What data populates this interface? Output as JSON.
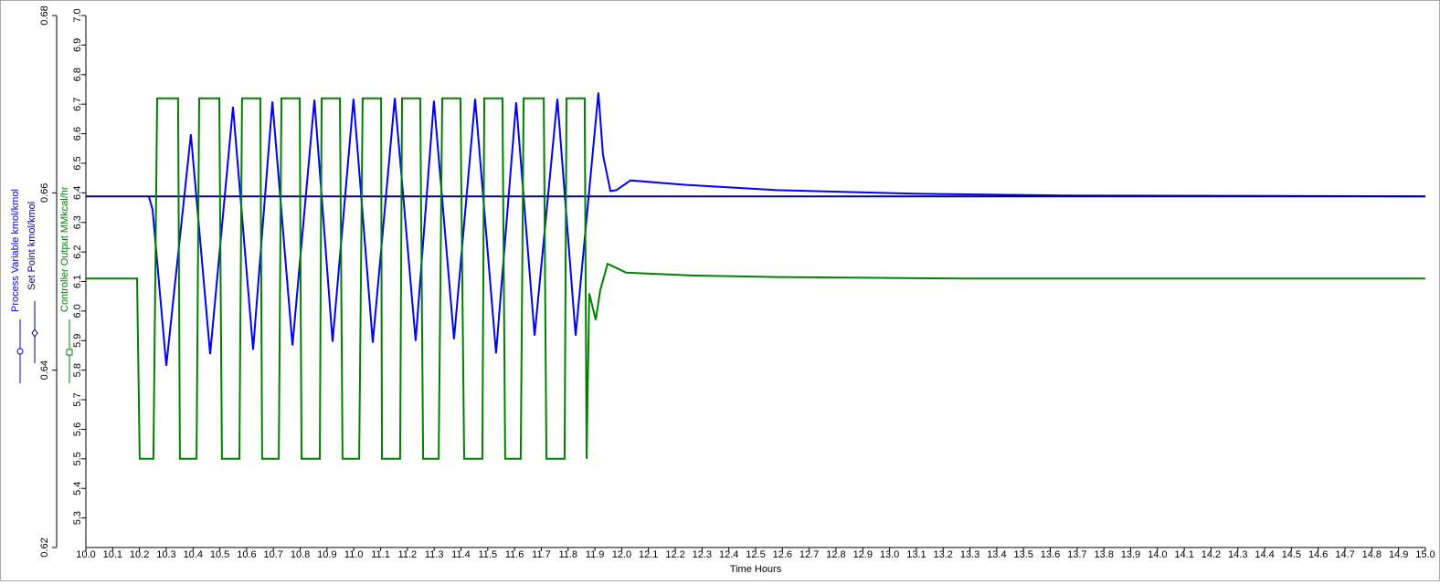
{
  "chart_data": {
    "type": "line",
    "x_label": "Time Hours",
    "xlim": [
      10.0,
      15.0
    ],
    "xticks": [
      {
        "value": 10.0,
        "label": "10.0"
      },
      {
        "value": 10.1,
        "label": "10.1"
      },
      {
        "value": 10.2,
        "label": "10.2"
      },
      {
        "value": 10.3,
        "label": "10.3"
      },
      {
        "value": 10.4,
        "label": "10.4"
      },
      {
        "value": 10.5,
        "label": "10.5"
      },
      {
        "value": 10.6,
        "label": "10.6"
      },
      {
        "value": 10.7,
        "label": "10.7"
      },
      {
        "value": 10.8,
        "label": "10.8"
      },
      {
        "value": 10.9,
        "label": "10.9"
      },
      {
        "value": 11.0,
        "label": "11.0"
      },
      {
        "value": 11.1,
        "label": "11.1"
      },
      {
        "value": 11.2,
        "label": "11.2"
      },
      {
        "value": 11.3,
        "label": "11.3"
      },
      {
        "value": 11.4,
        "label": "11.4"
      },
      {
        "value": 11.5,
        "label": "11.5"
      },
      {
        "value": 11.6,
        "label": "11.6"
      },
      {
        "value": 11.7,
        "label": "11.7"
      },
      {
        "value": 11.8,
        "label": "11.8"
      },
      {
        "value": 11.9,
        "label": "11.9"
      },
      {
        "value": 12.0,
        "label": "12.0"
      },
      {
        "value": 12.1,
        "label": "12.1"
      },
      {
        "value": 12.2,
        "label": "12.2"
      },
      {
        "value": 12.3,
        "label": "12.3"
      },
      {
        "value": 12.4,
        "label": "12.4"
      },
      {
        "value": 12.5,
        "label": "12.5"
      },
      {
        "value": 12.6,
        "label": "12.6"
      },
      {
        "value": 12.7,
        "label": "12.7"
      },
      {
        "value": 12.8,
        "label": "12.8"
      },
      {
        "value": 12.9,
        "label": "12.9"
      },
      {
        "value": 13.0,
        "label": "13.0"
      },
      {
        "value": 13.1,
        "label": "13.1"
      },
      {
        "value": 13.2,
        "label": "13.2"
      },
      {
        "value": 13.3,
        "label": "13.3"
      },
      {
        "value": 13.4,
        "label": "13.4"
      },
      {
        "value": 13.5,
        "label": "13.5"
      },
      {
        "value": 13.6,
        "label": "13.6"
      },
      {
        "value": 13.7,
        "label": "13.7"
      },
      {
        "value": 13.8,
        "label": "13.8"
      },
      {
        "value": 13.9,
        "label": "13.9"
      },
      {
        "value": 14.0,
        "label": "14.0"
      },
      {
        "value": 14.1,
        "label": "14.1"
      },
      {
        "value": 14.2,
        "label": "14.2"
      },
      {
        "value": 14.3,
        "label": "14.3"
      },
      {
        "value": 14.4,
        "label": "14.4"
      },
      {
        "value": 14.5,
        "label": "14.5"
      },
      {
        "value": 14.6,
        "label": "14.6"
      },
      {
        "value": 14.7,
        "label": "14.7"
      },
      {
        "value": 14.8,
        "label": "14.8"
      },
      {
        "value": 14.9,
        "label": "14.9"
      },
      {
        "value": 15.0,
        "label": "15.0"
      }
    ],
    "ylim": [
      0.62,
      0.68
    ],
    "yticks": [
      0.62,
      0.64,
      0.66,
      0.68
    ],
    "y2lim": [
      5.2,
      7.0
    ],
    "y2ticks": [
      5.3,
      5.4,
      5.5,
      5.6,
      5.7,
      5.8,
      5.9,
      {
        "value": 6.0,
        "label": "6.0"
      },
      6.1,
      6.2,
      6.3,
      6.4,
      6.5,
      6.6,
      6.7,
      6.8,
      6.9,
      {
        "value": 7.0,
        "label": "7.0"
      }
    ],
    "series": [
      {
        "name": "Process Variable kmol/kmol",
        "color": "#0000ff",
        "x": [
          10.235,
          10.249,
          10.3,
          10.392,
          10.464,
          10.549,
          10.624,
          10.696,
          10.771,
          10.853,
          10.921,
          10.999,
          11.071,
          11.153,
          11.231,
          11.299,
          11.374,
          11.453,
          11.531,
          11.606,
          11.675,
          11.76,
          11.828,
          11.913,
          11.93,
          11.958,
          11.98,
          12.033,
          12.24,
          12.58,
          13.09,
          13.64,
          15.0
        ],
        "values": [
          0.6596,
          0.6581,
          0.6405,
          0.6666,
          0.6418,
          0.6697,
          0.6423,
          0.6703,
          0.6428,
          0.6705,
          0.6432,
          0.6706,
          0.6431,
          0.6707,
          0.6433,
          0.6704,
          0.6435,
          0.6706,
          0.6419,
          0.6702,
          0.6439,
          0.6706,
          0.6439,
          0.6713,
          0.6643,
          0.6602,
          0.6603,
          0.6614,
          0.6609,
          0.6603,
          0.6599,
          0.6597,
          0.6596
        ]
      },
      {
        "name": "Set Point kmol/kmol",
        "color": "#000080",
        "x": [
          10.0,
          15.0
        ],
        "values": [
          0.6596,
          0.6596
        ]
      },
      {
        "name": "Controller Output MMkcal/hr",
        "color": "#008000",
        "axis": "y2",
        "x": [
          10.0,
          10.191,
          10.201,
          10.252,
          10.266,
          10.344,
          10.351,
          10.413,
          10.423,
          10.498,
          10.508,
          10.573,
          10.583,
          10.651,
          10.658,
          10.72,
          10.73,
          10.798,
          10.805,
          10.873,
          10.88,
          10.948,
          10.958,
          11.02,
          11.033,
          11.102,
          11.105,
          11.173,
          11.18,
          11.248,
          11.259,
          11.317,
          11.33,
          11.398,
          11.412,
          11.48,
          11.487,
          11.555,
          11.565,
          11.623,
          11.634,
          11.709,
          11.719,
          11.787,
          11.794,
          11.862,
          11.869,
          11.879,
          11.903,
          11.92,
          11.947,
          11.971,
          12.016,
          12.271,
          12.578,
          13.295,
          15.0
        ],
        "values": [
          6.11,
          6.11,
          5.5,
          5.5,
          6.72,
          6.72,
          5.5,
          5.5,
          6.72,
          6.72,
          5.5,
          5.5,
          6.72,
          6.72,
          5.5,
          5.5,
          6.72,
          6.72,
          5.5,
          5.5,
          6.72,
          6.72,
          5.5,
          5.5,
          6.72,
          6.72,
          5.5,
          5.5,
          6.72,
          6.72,
          5.5,
          5.5,
          6.72,
          6.72,
          5.5,
          5.5,
          6.72,
          6.72,
          5.5,
          5.5,
          6.72,
          6.72,
          5.5,
          5.5,
          6.72,
          6.72,
          5.5,
          6.06,
          5.97,
          6.07,
          6.16,
          6.15,
          6.13,
          6.12,
          6.115,
          6.11,
          6.11
        ]
      }
    ]
  }
}
